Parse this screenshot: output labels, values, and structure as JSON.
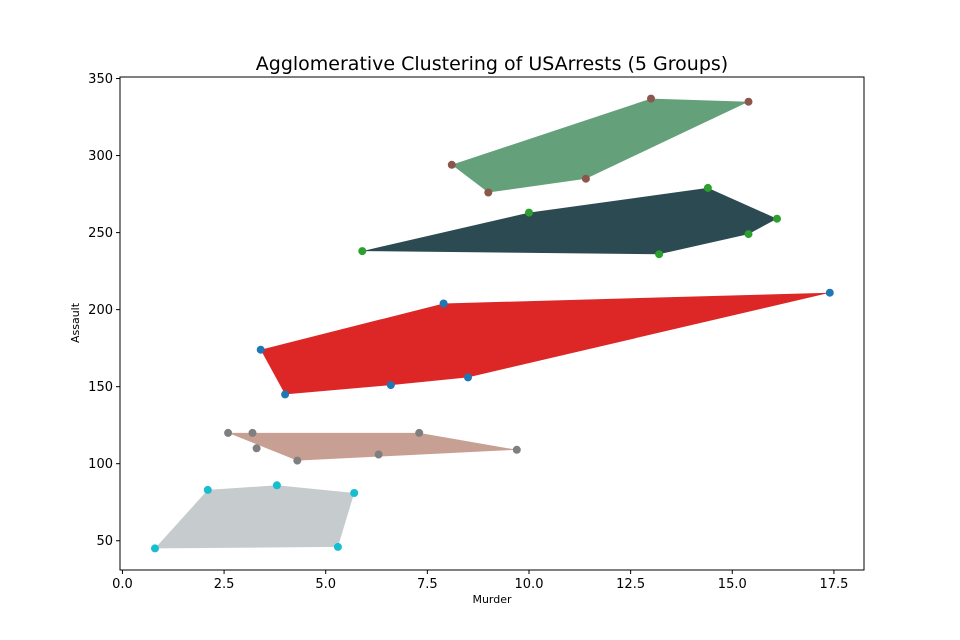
{
  "chart_data": {
    "type": "scatter",
    "title": "Agglomerative Clustering of USArrests (5 Groups)",
    "xlabel": "Murder",
    "ylabel": "Assault",
    "xlim": [
      -0.06,
      18.24
    ],
    "ylim": [
      31,
      351
    ],
    "xticks": [
      0.0,
      2.5,
      5.0,
      7.5,
      10.0,
      12.5,
      15.0,
      17.5
    ],
    "xtick_labels": [
      "0.0",
      "2.5",
      "5.0",
      "7.5",
      "10.0",
      "12.5",
      "15.0",
      "17.5"
    ],
    "yticks": [
      50,
      100,
      150,
      200,
      250,
      300,
      350
    ],
    "ytick_labels": [
      "50",
      "100",
      "150",
      "200",
      "250",
      "300",
      "350"
    ],
    "grid": false,
    "series": [
      {
        "point_color": "#8c564b",
        "hull_color": "#64a07a",
        "points": [
          [
            8.1,
            294
          ],
          [
            9.0,
            276
          ],
          [
            11.4,
            285
          ],
          [
            13.0,
            337
          ],
          [
            15.4,
            335
          ]
        ],
        "hull": [
          [
            8.1,
            294
          ],
          [
            9.0,
            276
          ],
          [
            11.4,
            285
          ],
          [
            15.4,
            335
          ],
          [
            13.0,
            337
          ]
        ]
      },
      {
        "point_color": "#2ca02c",
        "hull_color": "#2c4a52",
        "points": [
          [
            5.9,
            238
          ],
          [
            10.0,
            263
          ],
          [
            13.2,
            236
          ],
          [
            14.4,
            279
          ],
          [
            15.4,
            249
          ],
          [
            16.1,
            259
          ]
        ],
        "hull": [
          [
            5.9,
            238
          ],
          [
            13.2,
            236
          ],
          [
            15.4,
            249
          ],
          [
            16.1,
            259
          ],
          [
            14.4,
            279
          ],
          [
            10.0,
            263
          ]
        ]
      },
      {
        "point_color": "#1f77b4",
        "hull_color": "#dc2726",
        "points": [
          [
            3.4,
            174
          ],
          [
            4.0,
            145
          ],
          [
            6.6,
            151
          ],
          [
            7.9,
            204
          ],
          [
            8.5,
            156
          ],
          [
            17.4,
            211
          ]
        ],
        "hull": [
          [
            3.4,
            174
          ],
          [
            4.0,
            145
          ],
          [
            6.6,
            151
          ],
          [
            8.5,
            156
          ],
          [
            17.4,
            211
          ],
          [
            7.9,
            204
          ]
        ]
      },
      {
        "point_color": "#7f7f7f",
        "hull_color": "#c8a093",
        "points": [
          [
            2.6,
            120
          ],
          [
            3.2,
            120
          ],
          [
            3.3,
            110
          ],
          [
            4.3,
            102
          ],
          [
            6.3,
            106
          ],
          [
            7.3,
            120
          ],
          [
            9.7,
            109
          ]
        ],
        "hull": [
          [
            2.6,
            120
          ],
          [
            4.3,
            102
          ],
          [
            9.7,
            109
          ],
          [
            7.3,
            120
          ]
        ]
      },
      {
        "point_color": "#17becf",
        "hull_color": "#c6cbcd",
        "points": [
          [
            0.8,
            45
          ],
          [
            2.1,
            83
          ],
          [
            3.8,
            86
          ],
          [
            5.3,
            46
          ],
          [
            5.7,
            81
          ]
        ],
        "hull": [
          [
            0.8,
            45
          ],
          [
            5.3,
            46
          ],
          [
            5.7,
            81
          ],
          [
            3.8,
            86
          ],
          [
            2.1,
            83
          ]
        ]
      }
    ]
  }
}
